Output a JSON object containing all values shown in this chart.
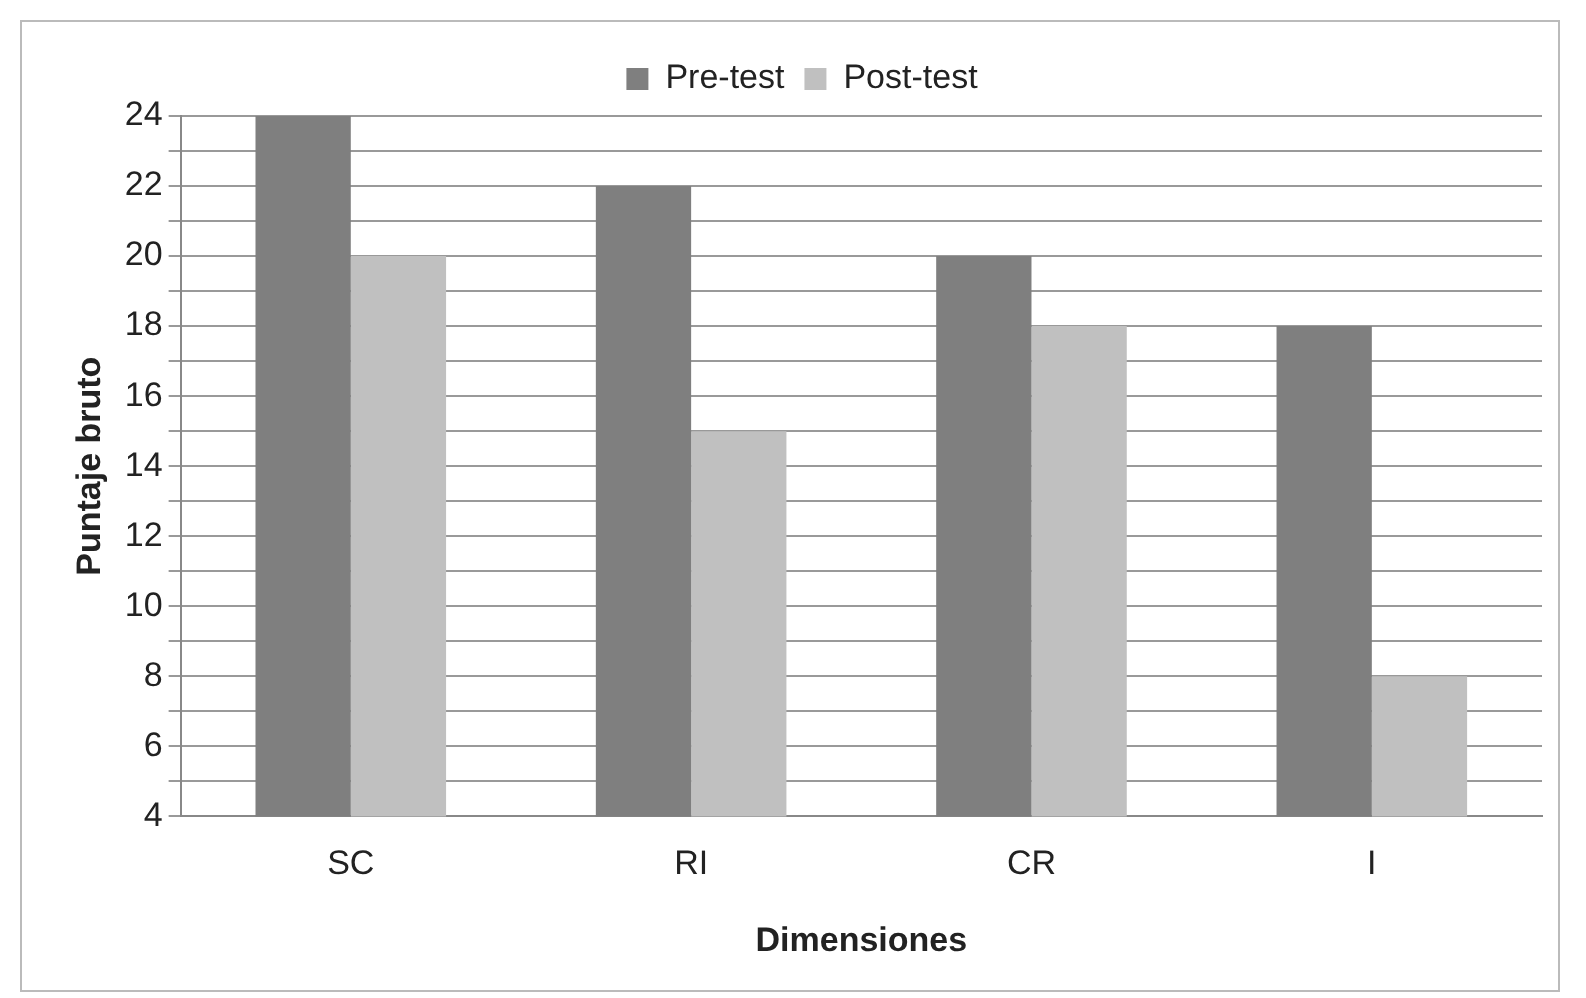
{
  "chart_data": {
    "type": "bar",
    "xlabel": "Dimensiones",
    "ylabel": "Puntaje bruto",
    "categories": [
      "SC",
      "RI",
      "CR",
      "I"
    ],
    "series": [
      {
        "name": "Pre-test",
        "color": "#7f7f7f",
        "values": [
          24,
          22,
          20,
          18
        ]
      },
      {
        "name": "Post-test",
        "color": "#c0c0c0",
        "values": [
          20,
          15,
          18,
          8
        ]
      }
    ],
    "ylim": [
      4,
      24
    ],
    "yticks": [
      4,
      {
        "value": 5,
        "label": null
      },
      6,
      {
        "value": 7,
        "label": null
      },
      8,
      {
        "value": 9,
        "label": null
      },
      10,
      {
        "value": 11,
        "label": null
      },
      12,
      {
        "value": 13,
        "label": null
      },
      14,
      {
        "value": 15,
        "label": null
      },
      16,
      {
        "value": 17,
        "label": null
      },
      18,
      {
        "value": 19,
        "label": null
      },
      20,
      {
        "value": 21,
        "label": null
      },
      22,
      {
        "value": 23,
        "label": null
      },
      24
    ],
    "grid": "y",
    "legend": "top"
  }
}
